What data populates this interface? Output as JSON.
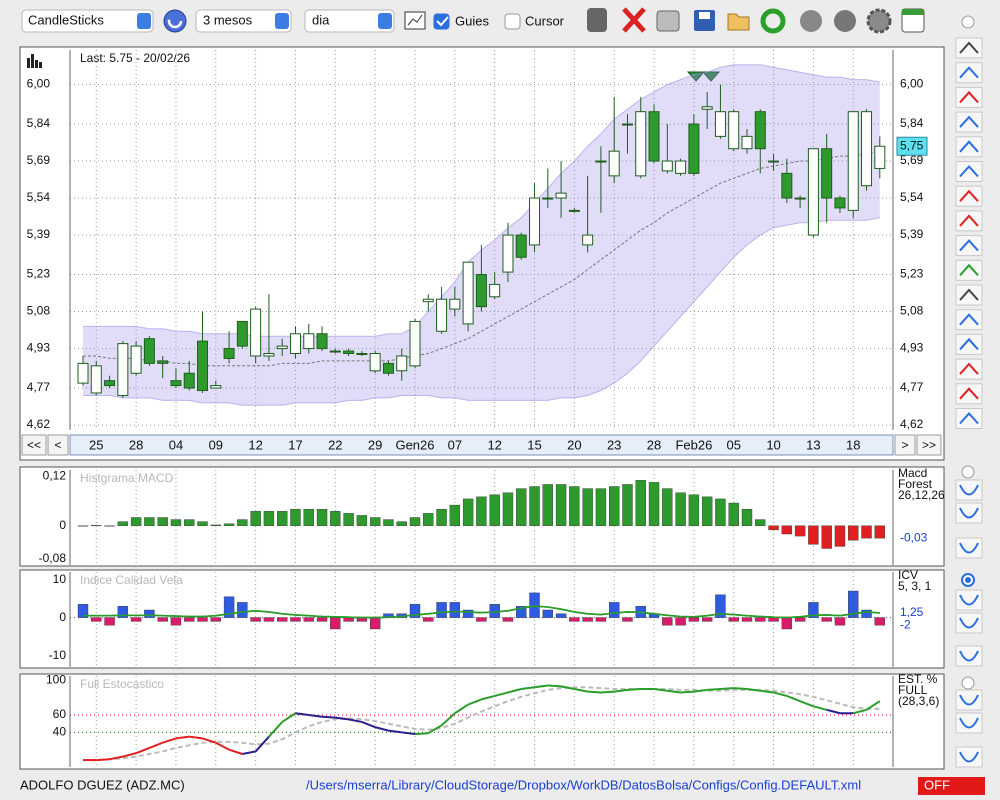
{
  "toolbar": {
    "chart_type": "CandleSticks",
    "period": "3 mesos",
    "interval": "dia",
    "guides": {
      "label": "Guies",
      "checked": true
    },
    "cursor": {
      "label": "Cursor",
      "checked": false
    }
  },
  "chart_data": [
    {
      "type": "candlestick",
      "last_label": "Last: 5.75 - 20/02/26",
      "categories": [
        null,
        "25",
        null,
        null,
        "28",
        null,
        null,
        "04",
        null,
        null,
        "09",
        null,
        null,
        "12",
        null,
        null,
        "17",
        null,
        null,
        "22",
        null,
        null,
        "29",
        null,
        null,
        "Gen26",
        null,
        null,
        "07",
        null,
        null,
        "12",
        null,
        null,
        "15",
        null,
        null,
        "20",
        null,
        null,
        "23",
        null,
        null,
        "28",
        null,
        null,
        "Feb26",
        null,
        null,
        "05",
        null,
        null,
        "10",
        null,
        null,
        "13",
        null,
        null,
        "18",
        null,
        null
      ],
      "open": [
        4.79,
        4.75,
        4.8,
        4.74,
        4.83,
        4.97,
        4.88,
        4.8,
        4.83,
        4.96,
        4.77,
        4.93,
        5.04,
        4.9,
        4.9,
        4.93,
        4.91,
        4.93,
        4.99,
        4.92,
        4.92,
        4.91,
        4.84,
        4.87,
        4.84,
        4.86,
        5.12,
        5.0,
        5.09,
        5.03,
        5.23,
        5.14,
        5.24,
        5.39,
        5.35,
        5.54,
        5.54,
        5.49,
        5.35,
        5.69,
        5.63,
        5.84,
        5.63,
        5.89,
        5.65,
        5.64,
        5.84,
        5.9,
        5.79,
        5.74,
        5.74,
        5.89,
        5.69,
        5.64,
        5.54,
        5.39,
        5.74,
        5.54,
        5.49,
        5.59,
        5.66
      ],
      "high": [
        4.9,
        4.88,
        4.82,
        4.96,
        4.96,
        4.98,
        4.9,
        4.85,
        4.88,
        5.08,
        4.8,
        5.0,
        5.04,
        5.1,
        5.15,
        4.97,
        5.02,
        5.03,
        5.02,
        4.93,
        4.93,
        4.92,
        4.92,
        4.88,
        4.93,
        5.05,
        5.15,
        5.18,
        5.18,
        5.28,
        5.35,
        5.24,
        5.44,
        5.4,
        5.6,
        5.66,
        5.69,
        5.5,
        5.63,
        5.75,
        5.95,
        5.88,
        5.95,
        5.92,
        5.84,
        5.7,
        5.88,
        5.97,
        6.0,
        5.9,
        5.82,
        5.9,
        5.72,
        5.7,
        5.55,
        5.74,
        5.8,
        5.55,
        5.89,
        5.9,
        5.79
      ],
      "low": [
        4.78,
        4.74,
        4.77,
        4.73,
        4.82,
        4.86,
        4.81,
        4.77,
        4.76,
        4.75,
        4.77,
        4.87,
        4.93,
        4.87,
        4.88,
        4.9,
        4.89,
        4.91,
        4.92,
        4.91,
        4.9,
        4.9,
        4.83,
        4.82,
        4.8,
        4.85,
        5.08,
        4.99,
        5.06,
        5.0,
        5.08,
        5.13,
        5.2,
        5.29,
        5.32,
        5.5,
        5.46,
        5.48,
        5.32,
        5.48,
        5.6,
        5.72,
        5.62,
        5.68,
        5.64,
        5.63,
        5.63,
        5.82,
        5.78,
        5.73,
        5.72,
        5.64,
        5.65,
        5.52,
        5.5,
        5.38,
        5.44,
        5.48,
        5.46,
        5.57,
        5.62
      ],
      "close": [
        4.87,
        4.86,
        4.78,
        4.95,
        4.94,
        4.87,
        4.87,
        4.78,
        4.77,
        4.76,
        4.78,
        4.89,
        4.94,
        5.09,
        4.91,
        4.94,
        4.99,
        4.99,
        4.93,
        4.92,
        4.91,
        4.91,
        4.91,
        4.83,
        4.9,
        5.04,
        5.13,
        5.13,
        5.13,
        5.28,
        5.1,
        5.19,
        5.39,
        5.3,
        5.54,
        5.54,
        5.56,
        5.49,
        5.39,
        5.69,
        5.73,
        5.84,
        5.89,
        5.69,
        5.69,
        5.69,
        5.64,
        5.91,
        5.89,
        5.89,
        5.79,
        5.74,
        5.69,
        5.54,
        5.54,
        5.74,
        5.54,
        5.5,
        5.89,
        5.89,
        5.75
      ],
      "up_color": "#ffffff",
      "down_color": "#2e9a2e",
      "bands": {
        "upper": [
          5.02,
          5.02,
          5.02,
          5.02,
          5.02,
          5.01,
          5.01,
          5.0,
          5.0,
          4.99,
          4.99,
          4.99,
          4.99,
          4.98,
          4.98,
          4.98,
          4.98,
          4.98,
          4.98,
          4.98,
          4.98,
          4.98,
          4.98,
          4.99,
          4.99,
          5.02,
          5.08,
          5.14,
          5.2,
          5.28,
          5.33,
          5.37,
          5.42,
          5.46,
          5.52,
          5.58,
          5.64,
          5.69,
          5.75,
          5.8,
          5.86,
          5.9,
          5.94,
          5.97,
          6.0,
          6.02,
          6.04,
          6.05,
          6.07,
          6.08,
          6.08,
          6.08,
          6.07,
          6.06,
          6.05,
          6.04,
          6.03,
          6.03,
          6.02,
          6.02,
          6.01
        ],
        "lower": [
          4.74,
          4.74,
          4.74,
          4.73,
          4.73,
          4.73,
          4.72,
          4.72,
          4.72,
          4.71,
          4.71,
          4.71,
          4.7,
          4.7,
          4.7,
          4.7,
          4.71,
          4.71,
          4.71,
          4.71,
          4.72,
          4.72,
          4.73,
          4.73,
          4.74,
          4.74,
          4.74,
          4.73,
          4.73,
          4.72,
          4.72,
          4.72,
          4.72,
          4.72,
          4.72,
          4.72,
          4.73,
          4.73,
          4.74,
          4.76,
          4.79,
          4.83,
          4.88,
          4.94,
          5.0,
          5.06,
          5.12,
          5.18,
          5.24,
          5.3,
          5.35,
          5.39,
          5.42,
          5.43,
          5.44,
          5.44,
          5.45,
          5.45,
          5.45,
          5.45,
          5.46
        ],
        "mean": [
          4.9,
          4.9,
          4.89,
          4.89,
          4.89,
          4.88,
          4.88,
          4.87,
          4.87,
          4.86,
          4.86,
          4.86,
          4.86,
          4.86,
          4.86,
          4.87,
          4.87,
          4.87,
          4.88,
          4.88,
          4.88,
          4.88,
          4.88,
          4.88,
          4.89,
          4.9,
          4.91,
          4.93,
          4.95,
          4.97,
          5.0,
          5.03,
          5.06,
          5.09,
          5.12,
          5.15,
          5.18,
          5.21,
          5.25,
          5.29,
          5.33,
          5.37,
          5.41,
          5.44,
          5.48,
          5.51,
          5.54,
          5.57,
          5.6,
          5.62,
          5.64,
          5.66,
          5.67,
          5.68,
          5.69,
          5.69,
          5.7,
          5.71,
          5.71,
          5.72,
          5.73
        ],
        "color": "#9b8ce6"
      },
      "ylim": [
        4.6,
        6.14
      ],
      "yticks": [
        {
          "value": 6.0,
          "label": "6,00"
        },
        {
          "value": 5.84,
          "label": "5,84"
        },
        {
          "value": 5.69,
          "label": "5,69"
        },
        {
          "value": 5.54,
          "label": "5,54"
        },
        {
          "value": 5.39,
          "label": "5,39"
        },
        {
          "value": 5.23,
          "label": "5,23"
        },
        {
          "value": 5.08,
          "label": "5,08"
        },
        {
          "value": 4.93,
          "label": "4,93"
        },
        {
          "value": 4.77,
          "label": "4,77"
        },
        {
          "value": 4.62,
          "label": "4,62"
        }
      ],
      "last_price": {
        "value": 5.75,
        "label": "5,75"
      },
      "nav": [
        "<<",
        "<",
        ">",
        ">>"
      ]
    },
    {
      "type": "bar",
      "title": "Histgrama MACD",
      "legend": [
        "Macd",
        "Forest",
        "26,12,26"
      ],
      "values": [
        0,
        0.001,
        0,
        0.01,
        0.02,
        0.02,
        0.02,
        0.015,
        0.015,
        0.01,
        0.002,
        0.005,
        0.015,
        0.035,
        0.035,
        0.035,
        0.04,
        0.04,
        0.04,
        0.035,
        0.03,
        0.025,
        0.02,
        0.015,
        0.01,
        0.02,
        0.03,
        0.04,
        0.05,
        0.065,
        0.07,
        0.075,
        0.08,
        0.09,
        0.095,
        0.1,
        0.1,
        0.095,
        0.09,
        0.09,
        0.095,
        0.1,
        0.11,
        0.105,
        0.09,
        0.08,
        0.075,
        0.07,
        0.065,
        0.055,
        0.04,
        0.015,
        -0.01,
        -0.02,
        -0.025,
        -0.045,
        -0.055,
        -0.05,
        -0.035,
        -0.03,
        -0.03
      ],
      "pos_color": "#2e9a2e",
      "neg_color": "#e02020",
      "ylim": [
        -0.095,
        0.135
      ],
      "yticks": [
        {
          "value": 0.12,
          "label": "0,12"
        },
        0,
        {
          "value": -0.08,
          "label": "-0,08"
        }
      ],
      "tick_line_colors": [
        "none",
        "none",
        "none"
      ],
      "last_values": [
        {
          "value": -0.03,
          "label": "-0,03"
        }
      ]
    },
    {
      "type": "bar",
      "title": "Indice Calidad Vela",
      "legend": [
        "ICV",
        "5, 3, 1"
      ],
      "values": [
        3.5,
        -1,
        -2,
        3,
        -1,
        2,
        -1,
        -2,
        -1,
        -1,
        -1,
        5.5,
        4,
        -1,
        -1,
        -1,
        -1,
        -1,
        -1,
        -3,
        -1,
        -1,
        -3,
        1,
        1,
        3.5,
        -1,
        4,
        4,
        2,
        -1,
        3.5,
        -1,
        3,
        6.5,
        2,
        1,
        -1,
        -1,
        -1,
        4,
        -1,
        3,
        1,
        -2,
        -2,
        -1,
        -1,
        6,
        -1,
        -1,
        -1,
        -1,
        -3,
        -1,
        4,
        -1,
        -2,
        7,
        2,
        -2
      ],
      "pos_color": "#2e5be0",
      "neg_color": "#d81b6a",
      "line": {
        "values": [
          0.5,
          0.5,
          0.5,
          0.6,
          0.6,
          0.6,
          0.5,
          0.4,
          0.3,
          0.3,
          0.5,
          1.0,
          1.5,
          1.8,
          1.5,
          1.0,
          0.7,
          0.5,
          0.3,
          0.2,
          0.1,
          0.0,
          0.0,
          0.1,
          0.3,
          0.7,
          1.0,
          1.4,
          1.6,
          1.5,
          1.3,
          1.5,
          1.8,
          2.5,
          3.0,
          2.8,
          2.2,
          1.5,
          1.0,
          0.8,
          1.2,
          1.5,
          1.4,
          1.0,
          0.6,
          0.3,
          0.2,
          0.5,
          1.0,
          0.8,
          0.5,
          0.3,
          0.1,
          0.0,
          0.2,
          0.6,
          0.7,
          0.5,
          1.0,
          1.5,
          1.25
        ],
        "color": "#2a9d2a"
      },
      "ylim": [
        -13,
        12
      ],
      "yticks": [
        10,
        0,
        -10
      ],
      "tick_line_colors": [
        "none",
        "#555555",
        "none"
      ],
      "last_values": [
        {
          "value": 1.25,
          "label": "1,25"
        },
        -2
      ]
    },
    {
      "type": "line",
      "title": "Full Estocastico",
      "legend": [
        "EST. %",
        "FULL",
        "(28,3,6)"
      ],
      "series": [
        {
          "values": [
            8,
            8,
            9,
            12,
            16,
            22,
            28,
            33,
            35,
            33,
            28,
            20,
            15,
            18,
            35,
            52,
            62,
            60,
            58,
            57,
            55,
            52,
            46,
            42,
            40,
            38,
            39,
            48,
            62,
            72,
            78,
            82,
            86,
            90,
            92,
            94,
            93,
            90,
            87,
            86,
            87,
            89,
            90,
            90,
            88,
            86,
            87,
            89,
            90,
            91,
            90,
            88,
            86,
            82,
            76,
            70,
            66,
            62,
            62,
            66,
            76
          ],
          "colors": [
            "#e02020",
            "#e02020",
            "#e02020",
            "#e02020",
            "#e02020",
            "#e02020",
            "#e02020",
            "#e02020",
            "#e02020",
            "#e02020",
            "#e02020",
            "#e02020",
            "#e02020",
            "#2b1e8c",
            "#2b1e8c",
            "#2a9d2a",
            "#2a9d2a",
            "#2b1e8c",
            "#2b1e8c",
            "#2b1e8c",
            "#2b1e8c",
            "#2b1e8c",
            "#2b1e8c",
            "#2b1e8c",
            "#2b1e8c",
            "#2b1e8c",
            "#2a9d2a",
            "#2a9d2a",
            "#2a9d2a",
            "#2a9d2a",
            "#2a9d2a",
            "#2a9d2a",
            "#2a9d2a",
            "#2a9d2a",
            "#2a9d2a",
            "#2a9d2a",
            "#2a9d2a",
            "#2a9d2a",
            "#2a9d2a",
            "#2a9d2a",
            "#2a9d2a",
            "#2a9d2a",
            "#2a9d2a",
            "#2a9d2a",
            "#2a9d2a",
            "#2a9d2a",
            "#2a9d2a",
            "#2a9d2a",
            "#2a9d2a",
            "#2a9d2a",
            "#2a9d2a",
            "#2a9d2a",
            "#2a9d2a",
            "#2a9d2a",
            "#2a9d2a",
            "#2a9d2a",
            "#2a9d2a",
            "#2b1e8c",
            "#2b1e8c",
            "#2a9d2a",
            "#2a9d2a"
          ]
        },
        {
          "values": [
            8,
            8,
            9,
            10,
            12,
            15,
            18,
            22,
            25,
            28,
            29,
            29,
            28,
            26,
            27,
            32,
            40,
            47,
            52,
            55,
            56,
            55,
            53,
            50,
            47,
            44,
            43,
            45,
            50,
            57,
            64,
            70,
            76,
            81,
            85,
            89,
            91,
            92,
            92,
            91,
            90,
            90,
            90,
            90,
            90,
            89,
            89,
            88,
            88,
            89,
            89,
            89,
            88,
            86,
            84,
            81,
            77,
            73,
            69,
            67,
            67
          ],
          "color": "#bbbbbb",
          "dash": true
        }
      ],
      "ylim": [
        0,
        105
      ],
      "yticks": [
        100,
        60,
        40
      ],
      "tick_line_colors": [
        "none",
        "#c00000",
        "#007a00"
      ]
    }
  ],
  "status": {
    "ticker": "ADOLFO DGUEZ (ADZ.MC)",
    "config_path": "/Users/mserra/Library/CloudStorage/Dropbox/WorkDB/DatosBolsa/Configs/Config.DEFAULT.xml",
    "state": "OFF"
  }
}
